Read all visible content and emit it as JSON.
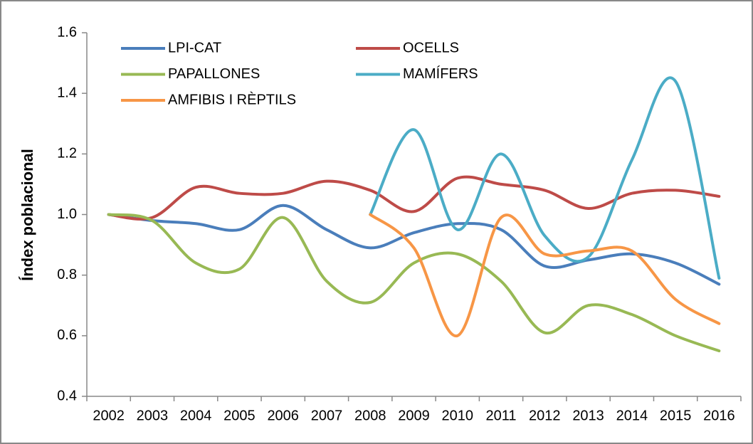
{
  "chart_data": {
    "type": "line",
    "y_label": "Índex poblacional",
    "categories": [
      "2002",
      "2003",
      "2004",
      "2005",
      "2006",
      "2007",
      "2008",
      "2009",
      "2010",
      "2011",
      "2012",
      "2013",
      "2014",
      "2015",
      "2016"
    ],
    "series": [
      {
        "name": "LPI-CAT",
        "color": "#4a7ebb",
        "values": [
          1.0,
          0.98,
          0.97,
          0.95,
          1.03,
          0.95,
          0.89,
          0.94,
          0.97,
          0.95,
          0.83,
          0.85,
          0.87,
          0.84,
          0.77
        ]
      },
      {
        "name": "OCELLS",
        "color": "#be4b48",
        "values": [
          1.0,
          0.99,
          1.09,
          1.07,
          1.07,
          1.11,
          1.08,
          1.01,
          1.12,
          1.1,
          1.08,
          1.02,
          1.07,
          1.08,
          1.06
        ]
      },
      {
        "name": "PAPALLONES",
        "color": "#98b954",
        "values": [
          1.0,
          0.98,
          0.84,
          0.82,
          0.99,
          0.78,
          0.71,
          0.84,
          0.87,
          0.78,
          0.61,
          0.7,
          0.67,
          0.6,
          0.55
        ]
      },
      {
        "name": "MAMÍFERS",
        "color": "#4bacc6",
        "values": [
          null,
          null,
          null,
          null,
          null,
          null,
          1.0,
          1.28,
          0.95,
          1.2,
          0.93,
          0.86,
          1.18,
          1.44,
          0.79
        ]
      },
      {
        "name": "AMFIBIS I RÈPTILS",
        "color": "#f79646",
        "values": [
          null,
          null,
          null,
          null,
          null,
          null,
          1.0,
          0.89,
          0.6,
          0.99,
          0.87,
          0.88,
          0.88,
          0.72,
          0.64
        ]
      }
    ],
    "ylim": [
      0.4,
      1.6
    ],
    "yticks": [
      0.4,
      0.6,
      0.8,
      {
        "value": 1,
        "label": "1.0"
      },
      1.2,
      1.4,
      1.6
    ],
    "smooth": true
  }
}
